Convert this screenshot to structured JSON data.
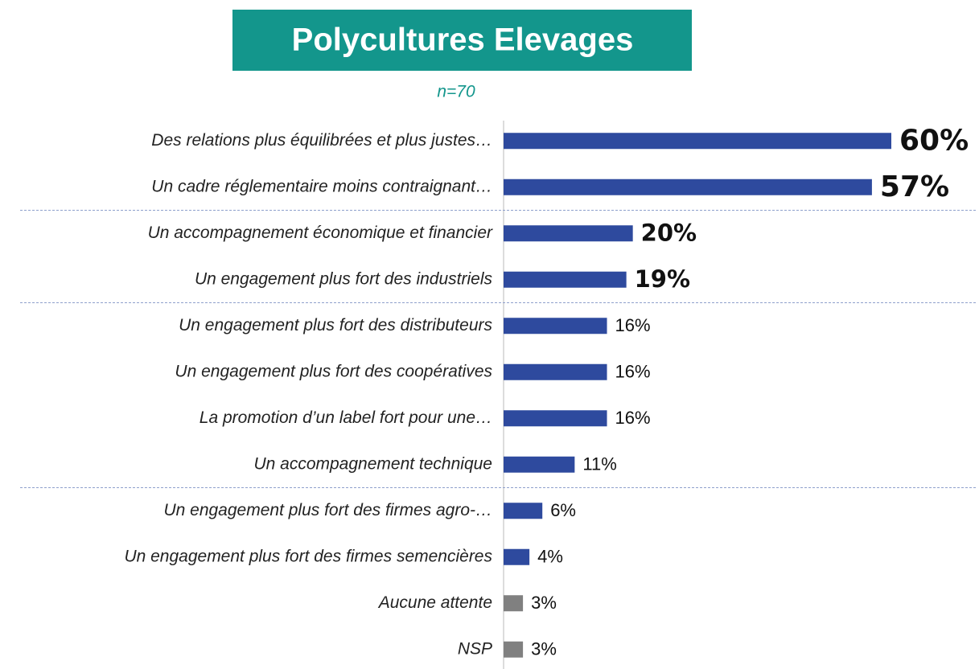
{
  "chart_data": {
    "type": "bar",
    "orientation": "horizontal",
    "title": "Polycultures Elevages",
    "subtitle": "n=70",
    "categories": [
      "Des relations plus équilibrées et plus justes…",
      "Un cadre réglementaire moins contraignant…",
      "Un accompagnement économique et financier",
      "Un engagement plus fort des industriels",
      "Un engagement plus fort des distributeurs",
      "Un engagement plus fort des coopératives",
      "La promotion d’un label fort pour une…",
      "Un accompagnement technique",
      "Un engagement plus fort des firmes agro-…",
      "Un engagement plus fort des firmes semencières",
      "Aucune attente",
      "NSP"
    ],
    "values": [
      60,
      57,
      20,
      19,
      16,
      16,
      16,
      11,
      6,
      4,
      3,
      3
    ],
    "value_labels": [
      "60%",
      "57%",
      "20%",
      "19%",
      "16%",
      "16%",
      "16%",
      "11%",
      "6%",
      "4%",
      "3%",
      "3%"
    ],
    "colors": [
      "#2e4a9e",
      "#2e4a9e",
      "#2e4a9e",
      "#2e4a9e",
      "#2e4a9e",
      "#2e4a9e",
      "#2e4a9e",
      "#2e4a9e",
      "#2e4a9e",
      "#2e4a9e",
      "#808080",
      "#808080"
    ],
    "value_label_emphasis": [
      "strong",
      "strong",
      "bold",
      "bold",
      "normal",
      "normal",
      "normal",
      "normal",
      "normal",
      "normal",
      "normal",
      "normal"
    ],
    "separators_after": [
      1,
      3,
      7
    ],
    "xlim": [
      0,
      60
    ]
  }
}
